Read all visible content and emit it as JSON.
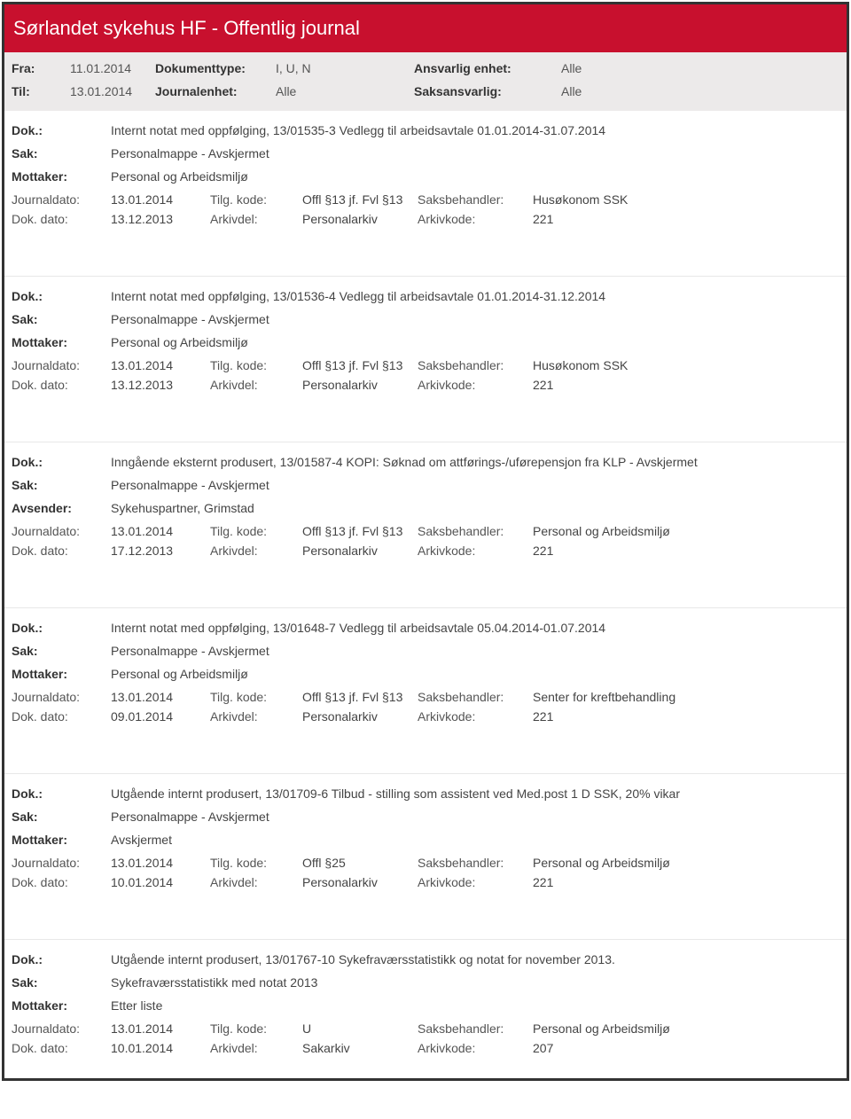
{
  "header": {
    "title": "Sørlandet sykehus HF - Offentlig journal"
  },
  "filters": {
    "fra_label": "Fra:",
    "fra_value": "11.01.2014",
    "til_label": "Til:",
    "til_value": "13.01.2014",
    "dokumenttype_label": "Dokumenttype:",
    "dokumenttype_value": "I, U, N",
    "journalenhet_label": "Journalenhet:",
    "journalenhet_value": "Alle",
    "ansvarlig_label": "Ansvarlig enhet:",
    "ansvarlig_value": "Alle",
    "saks_label": "Saksansvarlig:",
    "saks_value": "Alle"
  },
  "labels": {
    "dok": "Dok.:",
    "sak": "Sak:",
    "mottaker": "Mottaker:",
    "avsender": "Avsender:",
    "journaldato": "Journaldato:",
    "dokdato": "Dok. dato:",
    "tilgkode": "Tilg. kode:",
    "arkivdel": "Arkivdel:",
    "saksbehandler": "Saksbehandler:",
    "arkivkode": "Arkivkode:"
  },
  "entries": [
    {
      "dok": "Internt notat med oppfølging, 13/01535-3 Vedlegg til arbeidsavtale 01.01.2014-31.07.2014",
      "sak": "Personalmappe - Avskjermet",
      "party_label": "Mottaker:",
      "party": "Personal og Arbeidsmiljø",
      "journaldato": "13.01.2014",
      "tilgkode": "Offl §13 jf. Fvl §13",
      "saksbehandler": "Husøkonom SSK",
      "dokdato": "13.12.2013",
      "arkivdel": "Personalarkiv",
      "arkivkode": "221"
    },
    {
      "dok": "Internt notat med oppfølging, 13/01536-4 Vedlegg til arbeidsavtale 01.01.2014-31.12.2014",
      "sak": "Personalmappe - Avskjermet",
      "party_label": "Mottaker:",
      "party": "Personal og Arbeidsmiljø",
      "journaldato": "13.01.2014",
      "tilgkode": "Offl §13 jf. Fvl §13",
      "saksbehandler": "Husøkonom SSK",
      "dokdato": "13.12.2013",
      "arkivdel": "Personalarkiv",
      "arkivkode": "221"
    },
    {
      "dok": "Inngående eksternt produsert, 13/01587-4 KOPI: Søknad om attførings-/uførepensjon fra KLP - Avskjermet",
      "sak": "Personalmappe - Avskjermet",
      "party_label": "Avsender:",
      "party": "Sykehuspartner, Grimstad",
      "journaldato": "13.01.2014",
      "tilgkode": "Offl §13 jf. Fvl §13",
      "saksbehandler": "Personal og Arbeidsmiljø",
      "dokdato": "17.12.2013",
      "arkivdel": "Personalarkiv",
      "arkivkode": "221"
    },
    {
      "dok": "Internt notat med oppfølging, 13/01648-7 Vedlegg til arbeidsavtale 05.04.2014-01.07.2014",
      "sak": "Personalmappe - Avskjermet",
      "party_label": "Mottaker:",
      "party": "Personal og Arbeidsmiljø",
      "journaldato": "13.01.2014",
      "tilgkode": "Offl §13 jf. Fvl §13",
      "saksbehandler": "Senter for kreftbehandling",
      "dokdato": "09.01.2014",
      "arkivdel": "Personalarkiv",
      "arkivkode": "221"
    },
    {
      "dok": "Utgående internt produsert, 13/01709-6 Tilbud - stilling som assistent ved Med.post 1 D SSK, 20% vikar",
      "sak": "Personalmappe - Avskjermet",
      "party_label": "Mottaker:",
      "party": "Avskjermet",
      "journaldato": "13.01.2014",
      "tilgkode": "Offl §25",
      "saksbehandler": "Personal og Arbeidsmiljø",
      "dokdato": "10.01.2014",
      "arkivdel": "Personalarkiv",
      "arkivkode": "221"
    },
    {
      "dok": "Utgående internt produsert, 13/01767-10 Sykefraværsstatistikk og notat for november 2013.",
      "sak": "Sykefraværsstatistikk med notat 2013",
      "party_label": "Mottaker:",
      "party": "Etter liste",
      "journaldato": "13.01.2014",
      "tilgkode": "U",
      "saksbehandler": "Personal og Arbeidsmiljø",
      "dokdato": "10.01.2014",
      "arkivdel": "Sakarkiv",
      "arkivkode": "207"
    }
  ]
}
